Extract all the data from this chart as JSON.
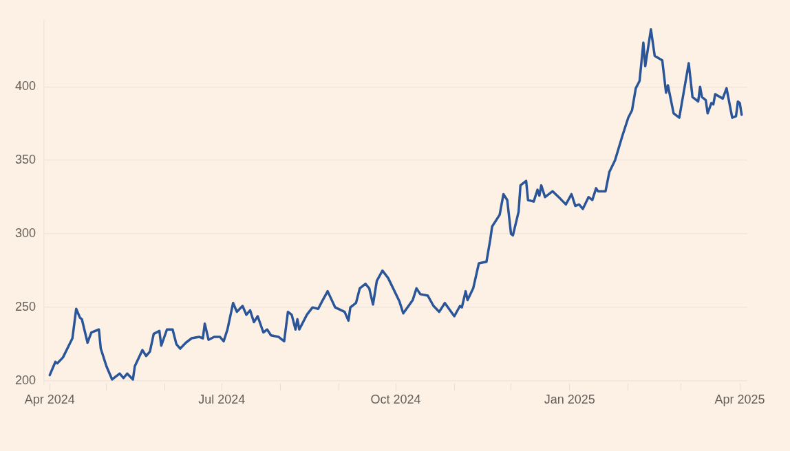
{
  "chart_data": {
    "type": "line",
    "color": "#2a5599",
    "grid": "y",
    "xlim": [
      "2024-03-29",
      "2025-04-05"
    ],
    "ylim": [
      198,
      445
    ],
    "xticks": [
      {
        "value": "2024-04-01",
        "label": "Apr 2024"
      },
      {
        "value": "2024-05-01",
        "label": null
      },
      {
        "value": "2024-06-01",
        "label": null
      },
      {
        "value": "2024-07-01",
        "label": "Jul 2024"
      },
      {
        "value": "2024-08-01",
        "label": null
      },
      {
        "value": "2024-09-01",
        "label": null
      },
      {
        "value": "2024-10-01",
        "label": "Oct 2024"
      },
      {
        "value": "2024-11-01",
        "label": null
      },
      {
        "value": "2024-12-01",
        "label": null
      },
      {
        "value": "2025-01-01",
        "label": "Jan 2025"
      },
      {
        "value": "2025-02-01",
        "label": null
      },
      {
        "value": "2025-03-01",
        "label": null
      },
      {
        "value": "2025-04-01",
        "label": "Apr 2025"
      }
    ],
    "yticks": [
      200,
      250,
      300,
      350,
      400
    ],
    "x": [
      "2024-04-01",
      "2024-04-04",
      "2024-04-05",
      "2024-04-08",
      "2024-04-13",
      "2024-04-15",
      "2024-04-17",
      "2024-04-18",
      "2024-04-21",
      "2024-04-23",
      "2024-04-27",
      "2024-04-28",
      "2024-05-01",
      "2024-05-04",
      "2024-05-08",
      "2024-05-10",
      "2024-05-12",
      "2024-05-15",
      "2024-05-16",
      "2024-05-20",
      "2024-05-22",
      "2024-05-24",
      "2024-05-26",
      "2024-05-29",
      "2024-05-30",
      "2024-06-02",
      "2024-06-05",
      "2024-06-07",
      "2024-06-09",
      "2024-06-12",
      "2024-06-15",
      "2024-06-19",
      "2024-06-21",
      "2024-06-22",
      "2024-06-24",
      "2024-06-27",
      "2024-06-30",
      "2024-07-02",
      "2024-07-04",
      "2024-07-07",
      "2024-07-09",
      "2024-07-12",
      "2024-07-14",
      "2024-07-16",
      "2024-07-18",
      "2024-07-20",
      "2024-07-23",
      "2024-07-25",
      "2024-07-27",
      "2024-07-31",
      "2024-08-01",
      "2024-08-03",
      "2024-08-05",
      "2024-08-07",
      "2024-08-09",
      "2024-08-10",
      "2024-08-11",
      "2024-08-15",
      "2024-08-18",
      "2024-08-21",
      "2024-08-23",
      "2024-08-26",
      "2024-08-30",
      "2024-09-04",
      "2024-09-06",
      "2024-09-07",
      "2024-09-10",
      "2024-09-12",
      "2024-09-15",
      "2024-09-17",
      "2024-09-19",
      "2024-09-21",
      "2024-09-24",
      "2024-09-27",
      "2024-10-03",
      "2024-10-05",
      "2024-10-10",
      "2024-10-12",
      "2024-10-14",
      "2024-10-18",
      "2024-10-21",
      "2024-10-24",
      "2024-10-27",
      "2024-11-01",
      "2024-11-04",
      "2024-11-05",
      "2024-11-07",
      "2024-11-08",
      "2024-11-11",
      "2024-11-14",
      "2024-11-18",
      "2024-11-20",
      "2024-11-21",
      "2024-11-25",
      "2024-11-27",
      "2024-11-29",
      "2024-12-01",
      "2024-12-02",
      "2024-12-05",
      "2024-12-06",
      "2024-12-09",
      "2024-12-10",
      "2024-12-13",
      "2024-12-15",
      "2024-12-16",
      "2024-12-17",
      "2024-12-19",
      "2024-12-23",
      "2024-12-27",
      "2024-12-30",
      "2025-01-02",
      "2025-01-04",
      "2025-01-06",
      "2025-01-08",
      "2025-01-11",
      "2025-01-13",
      "2025-01-15",
      "2025-01-16",
      "2025-01-20",
      "2025-01-22",
      "2025-01-25",
      "2025-01-29",
      "2025-02-01",
      "2025-02-03",
      "2025-02-05",
      "2025-02-07",
      "2025-02-09",
      "2025-02-10",
      "2025-02-13",
      "2025-02-15",
      "2025-02-19",
      "2025-02-21",
      "2025-02-22",
      "2025-02-25",
      "2025-02-28",
      "2025-03-05",
      "2025-03-07",
      "2025-03-10",
      "2025-03-11",
      "2025-03-12",
      "2025-03-14",
      "2025-03-15",
      "2025-03-17",
      "2025-03-18",
      "2025-03-19",
      "2025-03-23",
      "2025-03-25",
      "2025-03-28",
      "2025-03-30",
      "2025-03-31",
      "2025-04-01",
      "2025-04-02"
    ],
    "values": [
      204,
      213,
      212,
      216,
      229,
      249,
      243,
      242,
      226,
      233,
      235,
      222,
      210,
      201,
      205,
      202,
      205,
      201,
      210,
      221,
      217,
      220,
      232,
      234,
      224,
      235,
      235,
      225,
      222,
      226,
      229,
      230,
      229,
      239,
      228,
      230,
      230,
      227,
      235,
      253,
      247,
      251,
      245,
      248,
      240,
      244,
      233,
      235,
      231,
      230,
      229,
      227,
      247,
      245,
      235,
      242,
      235,
      245,
      250,
      249,
      254,
      261,
      250,
      247,
      241,
      250,
      253,
      263,
      266,
      263,
      252,
      268,
      275,
      270,
      254,
      246,
      255,
      263,
      259,
      258,
      251,
      247,
      253,
      244,
      251,
      250,
      261,
      255,
      263,
      280,
      281,
      296,
      305,
      313,
      327,
      323,
      300,
      299,
      315,
      333,
      336,
      323,
      322,
      330,
      326,
      333,
      325,
      329,
      324,
      320,
      327,
      319,
      320,
      317,
      325,
      323,
      331,
      329,
      329,
      342,
      350,
      367,
      379,
      384,
      399,
      404,
      430,
      414,
      439,
      421,
      418,
      396,
      401,
      382,
      379,
      416,
      393,
      390,
      400,
      393,
      391,
      382,
      389,
      388,
      395,
      392,
      399,
      379,
      380,
      390,
      389,
      381
    ]
  }
}
